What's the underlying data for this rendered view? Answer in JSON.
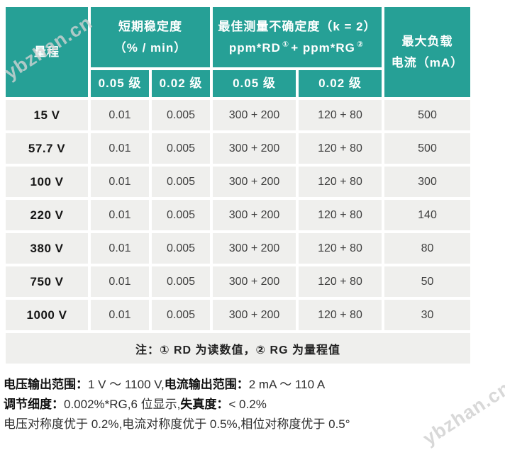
{
  "watermark": {
    "text": "ybzhan.cn"
  },
  "colors": {
    "header_teal": "#26A096",
    "cell_gray": "#EFEFED"
  },
  "table": {
    "header": {
      "range": "量程",
      "short_term": {
        "line1": "短期稳定度",
        "line2": "（% / min）"
      },
      "uncertainty": {
        "line1": "最佳测量不确定度（k = 2）",
        "line2_prefix": "ppm*RD",
        "line2_sup1": "①",
        "line2_mid": "+ ppm*RG",
        "line2_sup2": "②"
      },
      "max_load": {
        "line1": "最大负载",
        "line2": "电流（mA）"
      },
      "subheaders": [
        "0.05 级",
        "0.02 级",
        "0.05 级",
        "0.02 级"
      ]
    },
    "rows": [
      {
        "range": "15 V",
        "stab_005": "0.01",
        "stab_002": "0.005",
        "unc_005": "300 + 200",
        "unc_002": "120 + 80",
        "max_current": "500"
      },
      {
        "range": "57.7 V",
        "stab_005": "0.01",
        "stab_002": "0.005",
        "unc_005": "300 + 200",
        "unc_002": "120 + 80",
        "max_current": "500"
      },
      {
        "range": "100 V",
        "stab_005": "0.01",
        "stab_002": "0.005",
        "unc_005": "300 + 200",
        "unc_002": "120 + 80",
        "max_current": "300"
      },
      {
        "range": "220 V",
        "stab_005": "0.01",
        "stab_002": "0.005",
        "unc_005": "300 + 200",
        "unc_002": "120 + 80",
        "max_current": "140"
      },
      {
        "range": "380 V",
        "stab_005": "0.01",
        "stab_002": "0.005",
        "unc_005": "300 + 200",
        "unc_002": "120 + 80",
        "max_current": "80"
      },
      {
        "range": "750 V",
        "stab_005": "0.01",
        "stab_002": "0.005",
        "unc_005": "300 + 200",
        "unc_002": "120 + 80",
        "max_current": "50"
      },
      {
        "range": "1000 V",
        "stab_005": "0.01",
        "stab_002": "0.005",
        "unc_005": "300 + 200",
        "unc_002": "120 + 80",
        "max_current": "30"
      }
    ],
    "note": "注：① RD 为读数值，② RG 为量程值"
  },
  "footer": {
    "line1": {
      "label1": "电压输出范围：",
      "text1": "1 V ～ 1100 V,",
      "label2": "电流输出范围：",
      "text2": "2 mA ～ 110 A"
    },
    "line2": {
      "label1": "调节细度：",
      "text1": "0.002%*RG,6 位显示,",
      "label2": "失真度：",
      "text2": "< 0.2%"
    },
    "line3": "电压对称度优于 0.2%,电流对称度优于 0.5%,相位对称度优于 0.5°"
  }
}
